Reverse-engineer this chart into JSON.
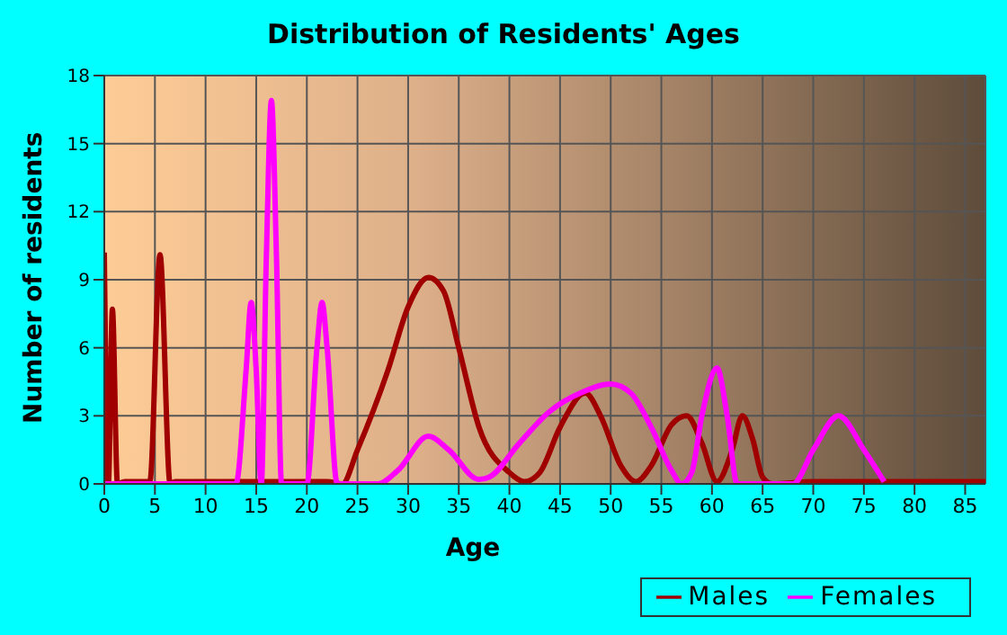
{
  "chart_data": {
    "type": "line",
    "title": "Distribution of Residents' Ages",
    "xlabel": "Age",
    "ylabel": "Number of residents",
    "xlim": [
      0,
      87
    ],
    "xticks": [
      0,
      5,
      10,
      15,
      20,
      25,
      30,
      35,
      40,
      45,
      50,
      55,
      60,
      65,
      70,
      75,
      80,
      85
    ],
    "ylim": [
      0,
      18
    ],
    "yticks": [
      0,
      3,
      6,
      9,
      12,
      15,
      18
    ],
    "grid": true,
    "legend": "bottom right",
    "marker": "none",
    "line_style": "solid",
    "series": [
      {
        "name": "Males",
        "color": "#a00000",
        "x": [
          0,
          0.4,
          0.8,
          1.3,
          2,
          4.5,
          5.5,
          6.5,
          7,
          22,
          23.5,
          25,
          28,
          30,
          32,
          33.5,
          35,
          37,
          40,
          41.5,
          43,
          45,
          47.5,
          49,
          51,
          52.5,
          54,
          56,
          57.5,
          59,
          60.5,
          62,
          63,
          64,
          65,
          66,
          70,
          87
        ],
        "values": [
          10.2,
          0,
          7.7,
          0,
          0.1,
          0.1,
          10.1,
          0,
          0.1,
          0.1,
          0,
          1.5,
          5,
          7.8,
          9.1,
          8.5,
          6,
          2.5,
          0.5,
          0.1,
          0.5,
          2.5,
          4,
          3,
          0.8,
          0.1,
          0.8,
          2.6,
          3,
          1.8,
          0.1,
          1.5,
          3,
          2,
          0.3,
          0,
          0.1,
          0.1
        ]
      },
      {
        "name": "Females",
        "color": "#ff00ff",
        "x": [
          0,
          13,
          14,
          14.5,
          15,
          15.5,
          16,
          16.5,
          17,
          17.5,
          20,
          21,
          21.5,
          22,
          23,
          27,
          29,
          32,
          34,
          37,
          38,
          41,
          44,
          47,
          50,
          52,
          54,
          56,
          57,
          58,
          59,
          60.5,
          61.5,
          62.5,
          65,
          68,
          70,
          72.5,
          75,
          77
        ],
        "values": [
          0,
          0,
          5,
          8,
          5,
          0,
          10,
          16.9,
          10,
          0,
          0,
          6,
          8,
          6,
          0,
          0,
          0.6,
          2.1,
          1.5,
          0.2,
          0.3,
          1.8,
          3.2,
          4,
          4.4,
          4,
          2.5,
          0.6,
          0,
          0.5,
          3,
          5.1,
          3,
          0,
          0,
          0,
          1.5,
          3,
          1.5,
          0.1
        ]
      }
    ]
  }
}
